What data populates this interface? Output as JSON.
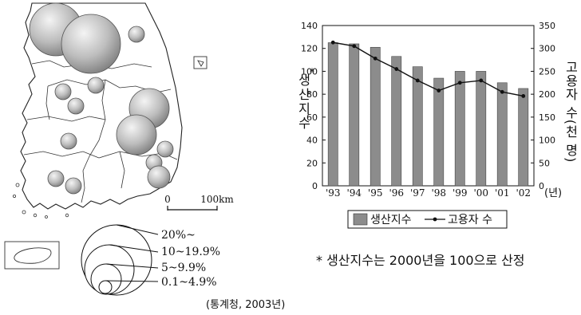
{
  "map": {
    "scale_zero": "0",
    "scale_label": "100km",
    "legend_classes": [
      "20%~",
      "10~19.9%",
      "5~9.9%",
      "0.1~4.9%"
    ]
  },
  "chart_data": {
    "type": "bar",
    "categories": [
      "'93",
      "'94",
      "'95",
      "'96",
      "'97",
      "'98",
      "'99",
      "'00",
      "'01",
      "'02"
    ],
    "x_unit": "(년)",
    "series": [
      {
        "name": "생산지수",
        "kind": "bar",
        "axis": "left",
        "values": [
          125,
          124,
          121,
          113,
          104,
          94,
          100,
          100,
          90,
          85
        ],
        "color": "#8c8c8c"
      },
      {
        "name": "고용자 수",
        "kind": "line",
        "axis": "right",
        "values": [
          313,
          305,
          278,
          255,
          230,
          208,
          225,
          230,
          205,
          196
        ],
        "color": "#111111"
      }
    ],
    "y_left": {
      "label": "생산지수",
      "label_mark": "*",
      "ylim": [
        0,
        140
      ],
      "ticks": [
        "0",
        "20",
        "40",
        "60",
        "80",
        "100",
        "120",
        "140"
      ]
    },
    "y_right": {
      "label": "고용자 수(천 명)",
      "ylim": [
        0,
        350
      ],
      "ticks": [
        "0",
        "50",
        "100",
        "150",
        "200",
        "250",
        "300",
        "350"
      ]
    },
    "legend_placement": "bottom",
    "grid": false
  },
  "footnote": "* 생산지수는 2000년을 100으로 산정",
  "source": "(통계청, 2003년)"
}
